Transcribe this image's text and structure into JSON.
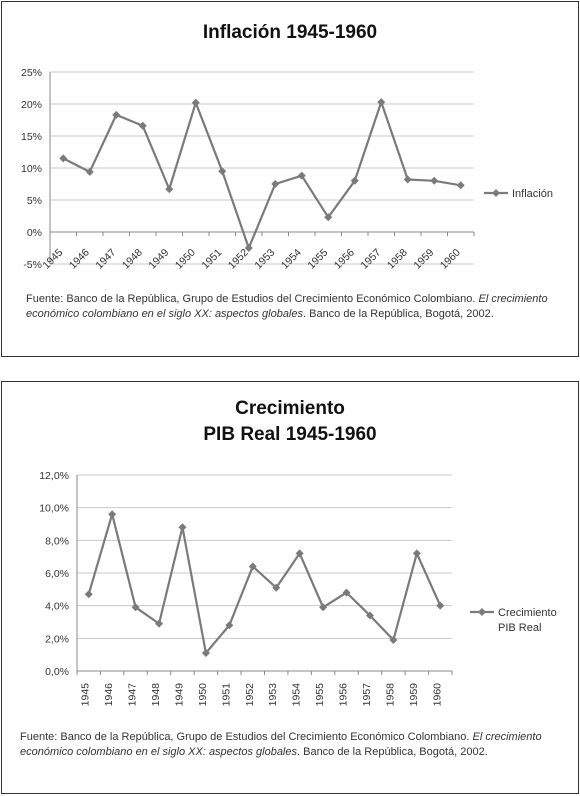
{
  "colors": {
    "line": "#7a7a7a",
    "grid": "#c8c8c8",
    "text": "#333333"
  },
  "chart1": {
    "title": "Inflación 1945-1960",
    "source_plain": "Fuente: Banco de la República, Grupo de Estudios del Crecimiento Económico Colombiano. ",
    "source_italic": "El crecimiento económico colombiano  en el siglo XX: aspectos globales",
    "source_tail": ". Banco de la República, Bogotá, 2002."
  },
  "chart2": {
    "title_line1": "Crecimiento",
    "title_line2": "PIB Real 1945-1960",
    "source_plain": "Fuente: Banco de la República, Grupo de Estudios del Crecimiento Económico Colombiano. ",
    "source_italic": "El crecimiento económico colombiano  en el siglo XX: aspectos globales",
    "source_tail": ". Banco de la República, Bogotá, 2002."
  },
  "chart_data": [
    {
      "type": "line",
      "title": "Inflación 1945-1960",
      "x": [
        "1945",
        "1946",
        "1947",
        "1948",
        "1949",
        "1950",
        "1951",
        "1952",
        "1953",
        "1954",
        "1955",
        "1956",
        "1957",
        "1958",
        "1959",
        "1960"
      ],
      "series": [
        {
          "name": "Inflación",
          "values": [
            11.5,
            9.4,
            18.3,
            16.6,
            6.7,
            20.2,
            9.5,
            -2.5,
            7.5,
            8.8,
            2.3,
            8.0,
            20.3,
            8.2,
            8.0,
            7.3
          ]
        }
      ],
      "y_ticks": [
        "-5%",
        "0%",
        "5%",
        "10%",
        "15%",
        "20%",
        "25%"
      ],
      "ylim": [
        -5,
        25
      ],
      "y_step": 5,
      "legend_position": "right",
      "grid": true
    },
    {
      "type": "line",
      "title": "Crecimiento PIB Real 1945-1960",
      "x": [
        "1945",
        "1946",
        "1947",
        "1948",
        "1949",
        "1950",
        "1951",
        "1952",
        "1953",
        "1954",
        "1955",
        "1956",
        "1957",
        "1958",
        "1959",
        "1960"
      ],
      "series": [
        {
          "name": "Crecimiento PIB Real",
          "values": [
            4.7,
            9.6,
            3.9,
            2.9,
            8.8,
            1.1,
            2.8,
            6.4,
            5.1,
            7.2,
            3.9,
            4.8,
            3.4,
            1.9,
            7.2,
            4.0
          ]
        }
      ],
      "y_ticks": [
        "0,0%",
        "2,0%",
        "4,0%",
        "6,0%",
        "8,0%",
        "10,0%",
        "12,0%"
      ],
      "ylim": [
        0,
        12
      ],
      "y_step": 2,
      "legend_lines": [
        "Crecimiento",
        "PIB Real"
      ],
      "legend_position": "right",
      "grid": true
    }
  ]
}
